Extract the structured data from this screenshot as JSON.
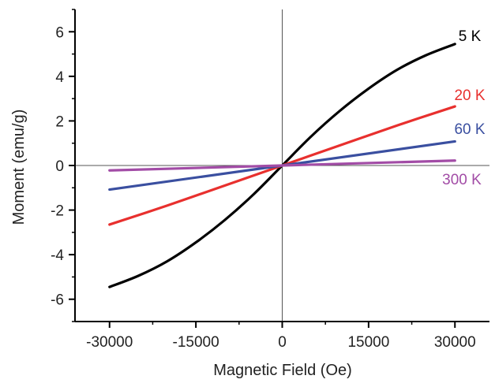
{
  "chart_data": {
    "type": "line",
    "title": "",
    "xlabel": "Magnetic Field (Oe)",
    "ylabel": "Moment (emu/g)",
    "xlim": [
      -36000,
      36000
    ],
    "ylim": [
      -7,
      7
    ],
    "x_ticks": [
      -30000,
      -15000,
      0,
      15000,
      30000
    ],
    "x_tick_labels": [
      "-30000",
      "-15000",
      "0",
      "15000",
      "30000"
    ],
    "y_ticks": [
      -6,
      -4,
      -2,
      0,
      2,
      4,
      6
    ],
    "y_tick_labels": [
      "-6",
      "-4",
      "-2",
      "0",
      "2",
      "4",
      "6"
    ],
    "grid": false,
    "zero_lines": true,
    "legend": "inline labels at right end of each curve",
    "series": [
      {
        "name": "5 K",
        "color": "#000000",
        "x": [
          -30000,
          -25000,
          -20000,
          -15000,
          -10000,
          -5000,
          0,
          5000,
          10000,
          15000,
          20000,
          25000,
          30000
        ],
        "y": [
          -5.45,
          -4.95,
          -4.3,
          -3.45,
          -2.45,
          -1.3,
          0,
          1.3,
          2.45,
          3.45,
          4.3,
          4.95,
          5.45
        ]
      },
      {
        "name": "20 K",
        "color": "#e8302e",
        "x": [
          -30000,
          -20000,
          -10000,
          0,
          10000,
          20000,
          30000
        ],
        "y": [
          -2.65,
          -1.8,
          -0.9,
          0,
          0.9,
          1.8,
          2.65
        ]
      },
      {
        "name": "60 K",
        "color": "#3a4fa0",
        "x": [
          -30000,
          0,
          30000
        ],
        "y": [
          -1.08,
          0,
          1.08
        ]
      },
      {
        "name": "300 K",
        "color": "#a24ca6",
        "x": [
          -30000,
          0,
          30000
        ],
        "y": [
          -0.22,
          0,
          0.22
        ]
      }
    ]
  }
}
